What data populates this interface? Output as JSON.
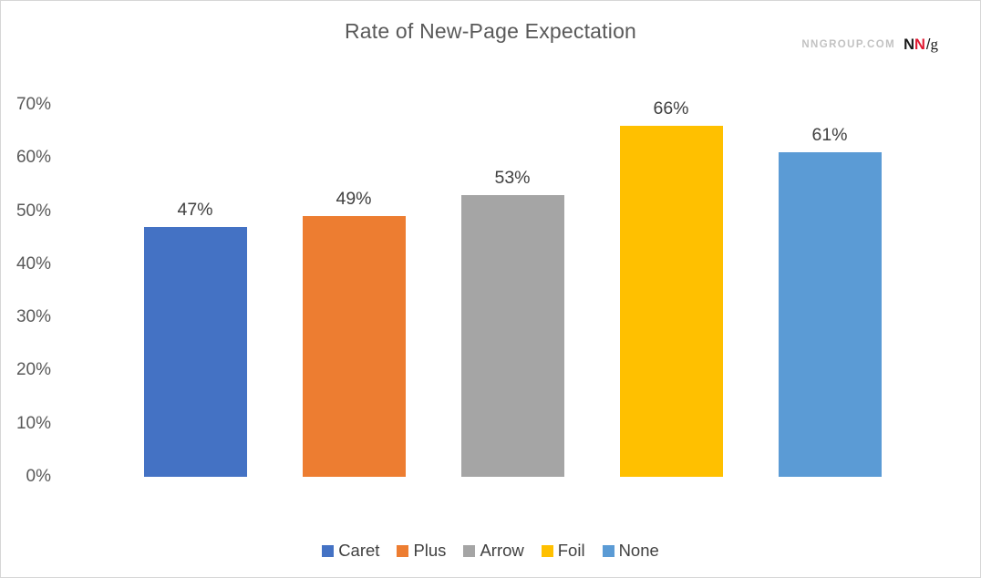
{
  "title": "Rate of New-Page Expectation",
  "logo": {
    "site": "NNGROUP.COM",
    "n1": "N",
    "n2": "N",
    "slash": "/",
    "g": "g",
    "n2_color": "#e01931"
  },
  "chart_data": {
    "type": "bar",
    "title": "Rate of New-Page Expectation",
    "categories": [
      "Caret",
      "Plus",
      "Arrow",
      "Foil",
      "None"
    ],
    "values": [
      47,
      49,
      53,
      66,
      61
    ],
    "value_labels": [
      "47%",
      "49%",
      "53%",
      "66%",
      "61%"
    ],
    "colors": [
      "#4472C4",
      "#ED7D31",
      "#A5A5A5",
      "#FFC000",
      "#5B9BD5"
    ],
    "xlabel": "",
    "ylabel": "",
    "ylim": [
      0,
      70
    ],
    "ytick_values": [
      0,
      10,
      20,
      30,
      40,
      50,
      60,
      70
    ],
    "ytick_labels": [
      "0%",
      "10%",
      "20%",
      "30%",
      "40%",
      "50%",
      "60%",
      "70%"
    ],
    "grid": false,
    "axis_lines": false,
    "legend_position": "bottom",
    "legend_entries": [
      "Caret",
      "Plus",
      "Arrow",
      "Foil",
      "None"
    ]
  }
}
